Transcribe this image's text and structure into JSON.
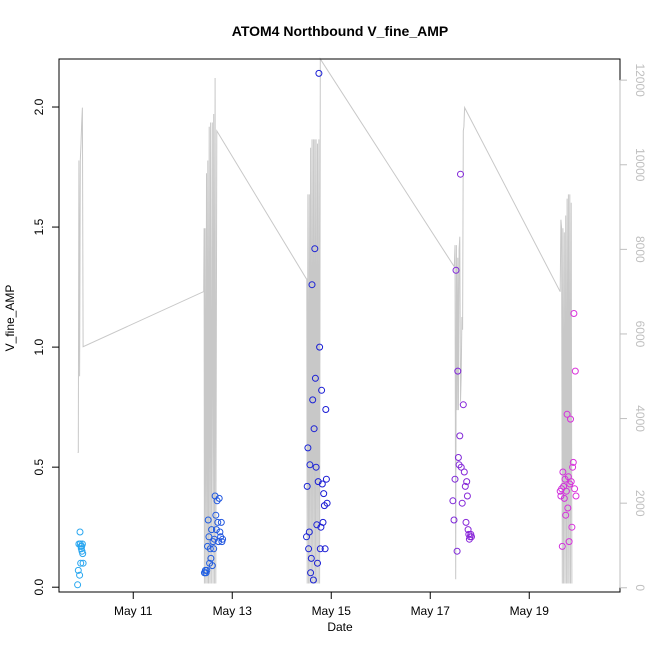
{
  "chart_data": {
    "type": "scatter",
    "title": "ATOM4 Northbound V_fine_AMP",
    "xlabel": "Date",
    "ylabel": "V_fine_AMP",
    "x_ticks": [
      "May 11",
      "May 13",
      "May 15",
      "May 17",
      "May 19"
    ],
    "y_ticks": [
      "0.0",
      "0.5",
      "1.0",
      "1.5",
      "2.0"
    ],
    "y2_ticks": [
      "0",
      "2000",
      "4000",
      "6000",
      "8000",
      "10000",
      "12000"
    ],
    "xlim": [
      "2021-05-09 12:00",
      "2021-05-20 20:00"
    ],
    "ylim": [
      -0.02,
      2.2
    ],
    "y2lim": [
      -100,
      12500
    ],
    "grid": false,
    "legend": "none",
    "colors": {
      "early": "#29a8f0",
      "mid": "#1a1ad4",
      "late": "#dc32dc",
      "line": "#c8c8c8"
    },
    "series": [
      {
        "points": [
          [
            "2021-05-09 21:00",
            0.01
          ],
          [
            "2021-05-09 21:20",
            0.07
          ],
          [
            "2021-05-09 21:40",
            0.18
          ],
          [
            "2021-05-09 22:00",
            0.05
          ],
          [
            "2021-05-09 22:10",
            0.23
          ],
          [
            "2021-05-09 22:20",
            0.18
          ],
          [
            "2021-05-09 22:30",
            0.1
          ],
          [
            "2021-05-09 22:40",
            0.17
          ],
          [
            "2021-05-09 22:50",
            0.16
          ],
          [
            "2021-05-09 23:00",
            0.17
          ],
          [
            "2021-05-09 23:10",
            0.15
          ],
          [
            "2021-05-09 23:20",
            0.18
          ],
          [
            "2021-05-09 23:30",
            0.14
          ],
          [
            "2021-05-09 23:40",
            0.1
          ],
          [
            "2021-05-12 10:30",
            0.06
          ],
          [
            "2021-05-12 10:40",
            0.06
          ],
          [
            "2021-05-12 11:00",
            0.07
          ],
          [
            "2021-05-12 11:20",
            0.06
          ],
          [
            "2021-05-12 11:40",
            0.07
          ],
          [
            "2021-05-12 12:00",
            0.17
          ],
          [
            "2021-05-12 12:20",
            0.28
          ],
          [
            "2021-05-12 12:40",
            0.21
          ],
          [
            "2021-05-12 13:00",
            0.1
          ],
          [
            "2021-05-12 13:20",
            0.16
          ],
          [
            "2021-05-12 13:40",
            0.12
          ],
          [
            "2021-05-12 14:00",
            0.24
          ],
          [
            "2021-05-12 14:20",
            0.09
          ],
          [
            "2021-05-12 14:40",
            0.19
          ],
          [
            "2021-05-12 15:00",
            0.16
          ],
          [
            "2021-05-12 15:20",
            0.2
          ],
          [
            "2021-05-12 15:40",
            0.38
          ],
          [
            "2021-05-12 16:00",
            0.3
          ],
          [
            "2021-05-12 16:20",
            0.24
          ],
          [
            "2021-05-12 16:40",
            0.36
          ],
          [
            "2021-05-12 17:00",
            0.27
          ],
          [
            "2021-05-12 17:20",
            0.19
          ],
          [
            "2021-05-12 17:40",
            0.37
          ],
          [
            "2021-05-12 18:00",
            0.23
          ],
          [
            "2021-05-12 18:20",
            0.21
          ],
          [
            "2021-05-12 18:40",
            0.27
          ],
          [
            "2021-05-12 19:00",
            0.19
          ],
          [
            "2021-05-12 19:20",
            0.2
          ],
          [
            "2021-05-14 12:00",
            0.21
          ],
          [
            "2021-05-14 12:20",
            0.42
          ],
          [
            "2021-05-14 12:40",
            0.58
          ],
          [
            "2021-05-14 13:00",
            0.16
          ],
          [
            "2021-05-14 13:20",
            0.23
          ],
          [
            "2021-05-14 13:40",
            0.51
          ],
          [
            "2021-05-14 14:00",
            0.06
          ],
          [
            "2021-05-14 14:20",
            0.12
          ],
          [
            "2021-05-14 14:40",
            1.26
          ],
          [
            "2021-05-14 15:00",
            0.78
          ],
          [
            "2021-05-14 15:20",
            0.03
          ],
          [
            "2021-05-14 15:40",
            0.66
          ],
          [
            "2021-05-14 16:00",
            1.41
          ],
          [
            "2021-05-14 16:20",
            0.87
          ],
          [
            "2021-05-14 16:40",
            0.5
          ],
          [
            "2021-05-14 17:00",
            0.26
          ],
          [
            "2021-05-14 17:20",
            0.1
          ],
          [
            "2021-05-14 17:40",
            0.44
          ],
          [
            "2021-05-14 18:00",
            2.14
          ],
          [
            "2021-05-14 18:20",
            1.0
          ],
          [
            "2021-05-14 18:40",
            0.16
          ],
          [
            "2021-05-14 19:00",
            0.25
          ],
          [
            "2021-05-14 19:20",
            0.82
          ],
          [
            "2021-05-14 19:40",
            0.43
          ],
          [
            "2021-05-14 20:00",
            0.27
          ],
          [
            "2021-05-14 20:20",
            0.39
          ],
          [
            "2021-05-14 20:40",
            0.34
          ],
          [
            "2021-05-14 21:00",
            0.16
          ],
          [
            "2021-05-14 21:20",
            0.74
          ],
          [
            "2021-05-14 21:40",
            0.45
          ],
          [
            "2021-05-14 22:00",
            0.35
          ]
        ]
      },
      {
        "points": [
          [
            "2021-05-17 11:00",
            0.36
          ],
          [
            "2021-05-17 11:30",
            0.28
          ],
          [
            "2021-05-17 12:00",
            0.45
          ],
          [
            "2021-05-17 12:30",
            1.32
          ],
          [
            "2021-05-17 13:00",
            0.15
          ],
          [
            "2021-05-17 13:20",
            0.9
          ],
          [
            "2021-05-17 13:40",
            0.54
          ],
          [
            "2021-05-17 14:00",
            0.51
          ],
          [
            "2021-05-17 14:20",
            0.63
          ],
          [
            "2021-05-17 14:40",
            1.72
          ],
          [
            "2021-05-17 15:00",
            0.5
          ],
          [
            "2021-05-17 15:30",
            0.35
          ],
          [
            "2021-05-17 16:00",
            0.76
          ],
          [
            "2021-05-17 16:30",
            0.48
          ],
          [
            "2021-05-17 17:00",
            0.42
          ],
          [
            "2021-05-17 17:20",
            0.27
          ],
          [
            "2021-05-17 17:40",
            0.44
          ],
          [
            "2021-05-17 18:00",
            0.38
          ],
          [
            "2021-05-17 18:20",
            0.24
          ],
          [
            "2021-05-17 18:40",
            0.22
          ],
          [
            "2021-05-17 19:00",
            0.2
          ],
          [
            "2021-05-17 19:20",
            0.21
          ],
          [
            "2021-05-17 19:40",
            0.22
          ],
          [
            "2021-05-17 20:00",
            0.21
          ],
          [
            "2021-05-19 15:00",
            0.4
          ],
          [
            "2021-05-19 15:20",
            0.38
          ],
          [
            "2021-05-19 15:40",
            0.41
          ],
          [
            "2021-05-19 16:00",
            0.17
          ],
          [
            "2021-05-19 16:20",
            0.48
          ],
          [
            "2021-05-19 16:40",
            0.42
          ],
          [
            "2021-05-19 17:00",
            0.37
          ],
          [
            "2021-05-19 17:20",
            0.45
          ],
          [
            "2021-05-19 17:40",
            0.3
          ],
          [
            "2021-05-19 18:00",
            0.4
          ],
          [
            "2021-05-19 18:20",
            0.72
          ],
          [
            "2021-05-19 18:40",
            0.33
          ],
          [
            "2021-05-19 19:00",
            0.46
          ],
          [
            "2021-05-19 19:20",
            0.19
          ],
          [
            "2021-05-19 19:40",
            0.43
          ],
          [
            "2021-05-19 20:00",
            0.7
          ],
          [
            "2021-05-19 20:20",
            0.44
          ],
          [
            "2021-05-19 20:40",
            0.25
          ],
          [
            "2021-05-19 21:00",
            0.5
          ],
          [
            "2021-05-19 21:20",
            0.52
          ],
          [
            "2021-05-19 21:40",
            1.14
          ],
          [
            "2021-05-19 22:00",
            0.41
          ],
          [
            "2021-05-19 22:20",
            0.9
          ],
          [
            "2021-05-19 22:40",
            0.38
          ]
        ]
      }
    ],
    "line_series": {
      "points": [
        [
          "2021-05-09 21:00",
          3200
        ],
        [
          "2021-05-09 21:20",
          3200
        ],
        [
          "2021-05-09 21:40",
          10100
        ],
        [
          "2021-05-09 22:00",
          5000
        ],
        [
          "2021-05-09 22:20",
          10100
        ],
        [
          "2021-05-09 22:40",
          10500
        ],
        [
          "2021-05-09 23:00",
          11000
        ],
        [
          "2021-05-09 23:20",
          11350
        ],
        [
          "2021-05-09 23:40",
          5700
        ],
        [
          "2021-05-12 10:00",
          7000
        ],
        [
          "2021-05-12 10:10",
          7000
        ],
        [
          "2021-05-12 10:20",
          8500
        ],
        [
          "2021-05-12 10:30",
          100
        ],
        [
          "2021-05-12 10:50",
          8500
        ],
        [
          "2021-05-12 11:10",
          100
        ],
        [
          "2021-05-12 11:30",
          9800
        ],
        [
          "2021-05-12 11:50",
          100
        ],
        [
          "2021-05-12 12:10",
          10100
        ],
        [
          "2021-05-12 12:30",
          100
        ],
        [
          "2021-05-12 12:50",
          10900
        ],
        [
          "2021-05-12 13:10",
          100
        ],
        [
          "2021-05-12 13:30",
          11000
        ],
        [
          "2021-05-12 13:50",
          100
        ],
        [
          "2021-05-12 14:20",
          11000
        ],
        [
          "2021-05-12 14:40",
          100
        ],
        [
          "2021-05-12 15:00",
          11200
        ],
        [
          "2021-05-12 15:20",
          100
        ],
        [
          "2021-05-12 15:40",
          12050
        ],
        [
          "2021-05-12 16:00",
          100
        ],
        [
          "2021-05-12 16:30",
          10800
        ],
        [
          "2021-05-14 12:00",
          7300
        ],
        [
          "2021-05-14 12:10",
          7300
        ],
        [
          "2021-05-14 12:20",
          100
        ],
        [
          "2021-05-14 12:40",
          9300
        ],
        [
          "2021-05-14 13:00",
          100
        ],
        [
          "2021-05-14 13:20",
          9300
        ],
        [
          "2021-05-14 13:40",
          100
        ],
        [
          "2021-05-14 14:00",
          10400
        ],
        [
          "2021-05-14 14:20",
          100
        ],
        [
          "2021-05-14 14:40",
          10600
        ],
        [
          "2021-05-14 15:00",
          100
        ],
        [
          "2021-05-14 15:20",
          10600
        ],
        [
          "2021-05-14 15:40",
          100
        ],
        [
          "2021-05-14 16:00",
          10600
        ],
        [
          "2021-05-14 16:20",
          100
        ],
        [
          "2021-05-14 16:40",
          10600
        ],
        [
          "2021-05-14 17:00",
          100
        ],
        [
          "2021-05-14 17:20",
          10500
        ],
        [
          "2021-05-14 17:40",
          100
        ],
        [
          "2021-05-14 18:00",
          10600
        ],
        [
          "2021-05-14 18:20",
          100
        ],
        [
          "2021-05-14 18:40",
          12500
        ],
        [
          "2021-05-17 11:30",
          7600
        ],
        [
          "2021-05-17 11:40",
          7600
        ],
        [
          "2021-05-17 12:00",
          8100
        ],
        [
          "2021-05-17 12:20",
          200
        ],
        [
          "2021-05-17 12:40",
          8100
        ],
        [
          "2021-05-17 13:00",
          4200
        ],
        [
          "2021-05-17 13:20",
          7800
        ],
        [
          "2021-05-17 13:40",
          4200
        ],
        [
          "2021-05-17 14:00",
          8000
        ],
        [
          "2021-05-17 14:20",
          8300
        ],
        [
          "2021-05-17 14:40",
          4400
        ],
        [
          "2021-05-17 15:00",
          5000
        ],
        [
          "2021-05-17 15:20",
          6400
        ],
        [
          "2021-05-17 15:40",
          6100
        ],
        [
          "2021-05-17 16:00",
          10800
        ],
        [
          "2021-05-17 16:20",
          10900
        ],
        [
          "2021-05-17 16:40",
          11350
        ],
        [
          "2021-05-19 15:00",
          7000
        ],
        [
          "2021-05-19 15:20",
          8700
        ],
        [
          "2021-05-19 15:40",
          8500
        ],
        [
          "2021-05-19 16:00",
          100
        ],
        [
          "2021-05-19 16:20",
          8500
        ],
        [
          "2021-05-19 16:40",
          100
        ],
        [
          "2021-05-19 17:00",
          8400
        ],
        [
          "2021-05-19 17:20",
          100
        ],
        [
          "2021-05-19 17:40",
          8800
        ],
        [
          "2021-05-19 18:00",
          100
        ],
        [
          "2021-05-19 18:20",
          9200
        ],
        [
          "2021-05-19 18:40",
          100
        ],
        [
          "2021-05-19 19:00",
          9300
        ],
        [
          "2021-05-19 19:20",
          100
        ],
        [
          "2021-05-19 19:40",
          9300
        ],
        [
          "2021-05-19 20:00",
          100
        ],
        [
          "2021-05-19 20:20",
          9100
        ],
        [
          "2021-05-19 20:40",
          100
        ]
      ]
    }
  }
}
